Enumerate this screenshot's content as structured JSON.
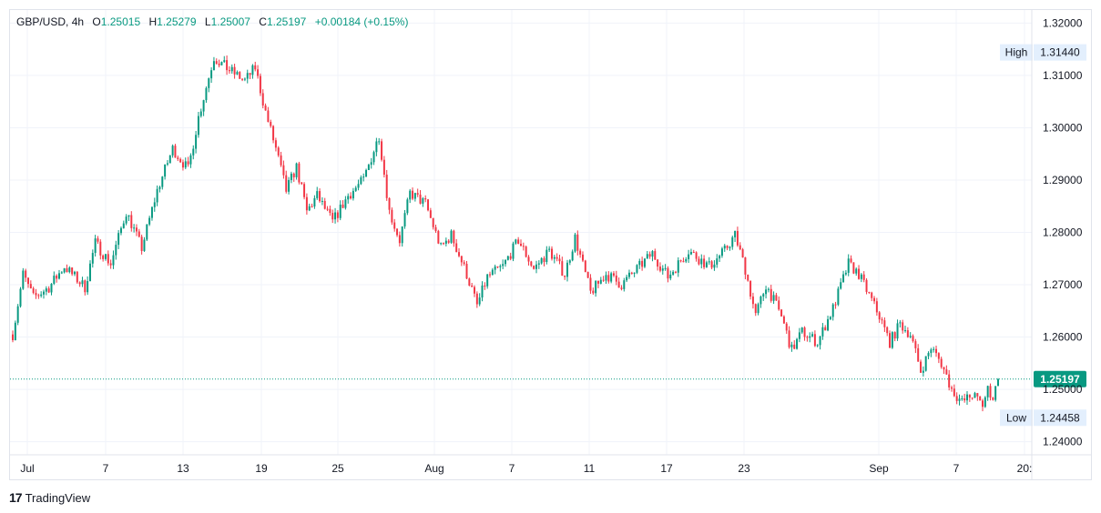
{
  "header": {
    "symbol": "GBP/USD",
    "interval": "4h",
    "open_label": "O",
    "open": "1.25015",
    "high_label": "H",
    "high": "1.25279",
    "low_label": "L",
    "low": "1.25007",
    "close_label": "C",
    "close": "1.25197",
    "change": "+0.00184 (+0.15%)"
  },
  "brand": {
    "name": "TradingView",
    "logo_text": "17"
  },
  "colors": {
    "up": "#089981",
    "down": "#f23645",
    "grid": "#f0f3fa",
    "text": "#131722"
  },
  "chart_data": {
    "type": "candlestick",
    "ylim": [
      1.2375,
      1.3225
    ],
    "y_ticks": [
      "1.24000",
      "1.25000",
      "1.26000",
      "1.27000",
      "1.28000",
      "1.29000",
      "1.30000",
      "1.31000",
      "1.32000"
    ],
    "x_tick_labels": [
      "Jul",
      "7",
      "13",
      "19",
      "25",
      "Aug",
      "7",
      "11",
      "17",
      "23",
      "Sep",
      "7",
      "20:"
    ],
    "high_marker": {
      "label": "High",
      "value": "1.31440"
    },
    "low_marker": {
      "label": "Low",
      "value": "1.24458"
    },
    "last_price": "1.25197",
    "path_points": [
      [
        0,
        1.2605
      ],
      [
        4,
        1.272
      ],
      [
        8,
        1.2675
      ],
      [
        14,
        1.2695
      ],
      [
        20,
        1.2735
      ],
      [
        28,
        1.2695
      ],
      [
        32,
        1.278
      ],
      [
        38,
        1.274
      ],
      [
        44,
        1.284
      ],
      [
        50,
        1.277
      ],
      [
        56,
        1.288
      ],
      [
        62,
        1.296
      ],
      [
        68,
        1.292
      ],
      [
        72,
        1.302
      ],
      [
        78,
        1.3135
      ],
      [
        84,
        1.311
      ],
      [
        90,
        1.309
      ],
      [
        94,
        1.3115
      ],
      [
        98,
        1.303
      ],
      [
        102,
        1.296
      ],
      [
        106,
        1.288
      ],
      [
        110,
        1.2925
      ],
      [
        114,
        1.284
      ],
      [
        118,
        1.287
      ],
      [
        124,
        1.282
      ],
      [
        130,
        1.287
      ],
      [
        136,
        1.29
      ],
      [
        142,
        1.2985
      ],
      [
        146,
        1.284
      ],
      [
        150,
        1.2785
      ],
      [
        154,
        1.2875
      ],
      [
        160,
        1.2855
      ],
      [
        166,
        1.277
      ],
      [
        170,
        1.2795
      ],
      [
        176,
        1.272
      ],
      [
        180,
        1.266
      ],
      [
        184,
        1.2715
      ],
      [
        190,
        1.2735
      ],
      [
        196,
        1.2785
      ],
      [
        202,
        1.273
      ],
      [
        208,
        1.2765
      ],
      [
        214,
        1.272
      ],
      [
        218,
        1.279
      ],
      [
        224,
        1.2685
      ],
      [
        230,
        1.272
      ],
      [
        236,
        1.27
      ],
      [
        242,
        1.273
      ],
      [
        248,
        1.276
      ],
      [
        254,
        1.2715
      ],
      [
        262,
        1.2765
      ],
      [
        270,
        1.2735
      ],
      [
        276,
        1.2765
      ],
      [
        280,
        1.2795
      ],
      [
        284,
        1.273
      ],
      [
        288,
        1.264
      ],
      [
        292,
        1.27
      ],
      [
        298,
        1.264
      ],
      [
        302,
        1.2575
      ],
      [
        306,
        1.261
      ],
      [
        312,
        1.259
      ],
      [
        318,
        1.2655
      ],
      [
        324,
        1.274
      ],
      [
        328,
        1.272
      ],
      [
        332,
        1.268
      ],
      [
        336,
        1.264
      ],
      [
        340,
        1.259
      ],
      [
        344,
        1.2625
      ],
      [
        348,
        1.2605
      ],
      [
        352,
        1.2535
      ],
      [
        356,
        1.258
      ],
      [
        360,
        1.255
      ],
      [
        364,
        1.25
      ],
      [
        368,
        1.2475
      ],
      [
        372,
        1.249
      ],
      [
        376,
        1.247
      ],
      [
        378,
        1.25
      ],
      [
        380,
        1.2485
      ],
      [
        382,
        1.252
      ]
    ]
  }
}
